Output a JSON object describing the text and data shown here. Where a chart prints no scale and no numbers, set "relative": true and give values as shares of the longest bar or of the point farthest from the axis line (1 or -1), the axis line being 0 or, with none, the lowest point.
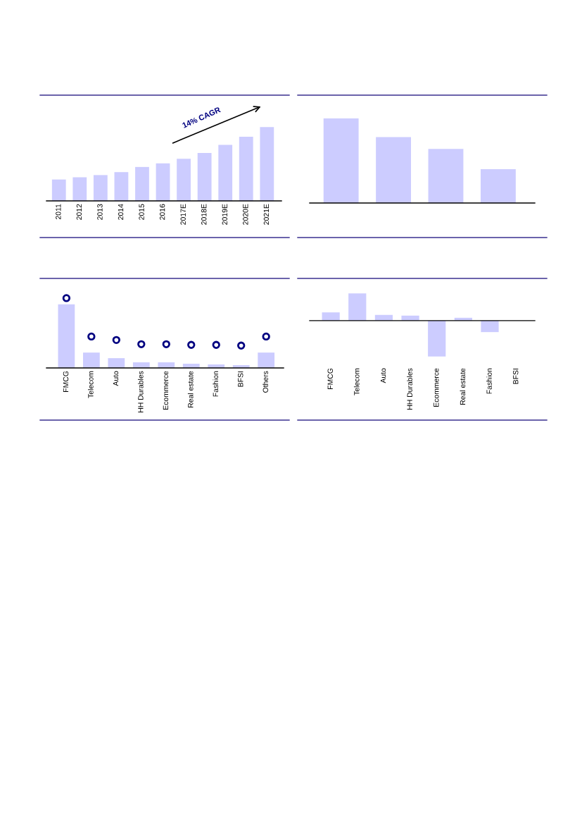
{
  "chart_data": [
    {
      "type": "bar",
      "relative": true,
      "color": "#ccccff",
      "categories": [
        "2011",
        "2012",
        "2013",
        "2014",
        "2015",
        "2016",
        "2017E",
        "2018E",
        "2019E",
        "2020E",
        "2021E"
      ],
      "values": [
        0.29,
        0.32,
        0.35,
        0.39,
        0.46,
        0.51,
        0.57,
        0.65,
        0.76,
        0.87,
        1
      ],
      "annotations": [
        "14% CAGR"
      ]
    },
    {
      "type": "bar",
      "relative": true,
      "color": "#ccccff",
      "categories": [
        null,
        null,
        null,
        null
      ],
      "values": [
        1,
        0.78,
        0.64,
        0.4
      ]
    },
    {
      "type": "bar",
      "relative": true,
      "marker": "circle",
      "categories": [
        "FMCG",
        "Telecom",
        "Auto",
        "HH Durables",
        "Ecommerce",
        "Real estate",
        "Fashion",
        "BFSI",
        "Others"
      ],
      "series": [
        {
          "type": "bar",
          "color": "#ccccff",
          "values": [
            0.91,
            0.22,
            0.14,
            0.08,
            0.08,
            0.06,
            0.05,
            0.04,
            0.22
          ]
        },
        {
          "type": "scatter",
          "color": "#000080",
          "values": [
            1,
            0.45,
            0.4,
            0.34,
            0.34,
            0.33,
            0.33,
            0.32,
            0.45
          ]
        }
      ]
    },
    {
      "type": "bar",
      "relative": true,
      "color": "#ccccff",
      "categories": [
        "FMCG",
        "Telecom",
        "Auto",
        "HH Durables",
        "Ecommerce",
        "Real estate",
        "Fashion",
        "BFSI"
      ],
      "values": [
        0.23,
        0.76,
        0.16,
        0.14,
        -1,
        0.08,
        -0.32,
        0
      ]
    }
  ]
}
